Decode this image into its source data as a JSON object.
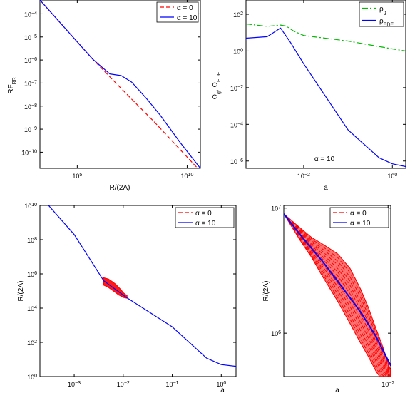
{
  "chart_data": [
    {
      "type": "line",
      "xlabel": "R/(2Λ)",
      "ylabel_main": "RF",
      "ylabel_sub": "RR",
      "xscale": "log",
      "yscale": "log",
      "xlim": [
        2000,
        40000000000
      ],
      "ylim": [
        2e-11,
        0.0004
      ],
      "xticks": [
        {
          "v": 100000,
          "m": "10",
          "e": "5"
        },
        {
          "v": 10000000000,
          "m": "10",
          "e": "10"
        }
      ],
      "yticks": [
        {
          "v": 0.0001,
          "m": "10",
          "e": "−4"
        },
        {
          "v": 1e-05,
          "m": "10",
          "e": "−5"
        },
        {
          "v": 1e-06,
          "m": "10",
          "e": "−6"
        },
        {
          "v": 1e-07,
          "m": "10",
          "e": "−7"
        },
        {
          "v": 1e-08,
          "m": "10",
          "e": "−8"
        },
        {
          "v": 1e-09,
          "m": "10",
          "e": "−9"
        },
        {
          "v": 1e-10,
          "m": "10",
          "e": "−10"
        }
      ],
      "legend": "top-right",
      "series": [
        {
          "name": "α = 0",
          "color": "#ff0000",
          "style": "dashed",
          "x": [
            2000,
            500000,
            5000000,
            30000000,
            300000000,
            40000000000
          ],
          "y": [
            0.0004,
            1.1e-06,
            1.15e-07,
            2e-08,
            2.2e-09,
            1.5e-11
          ]
        },
        {
          "name": "α = 10",
          "color": "#0000ff",
          "style": "solid",
          "x": [
            2000,
            500000,
            3000000,
            10000000,
            30000000,
            150000000,
            600000000,
            5000000000,
            40000000000
          ],
          "y": [
            0.0004,
            1.1e-06,
            2.5e-07,
            2.1e-07,
            1.1e-07,
            2e-08,
            4e-09,
            2.5e-10,
            2e-11
          ]
        }
      ]
    },
    {
      "type": "line",
      "xlabel": "a",
      "ylabel_main": "Ω",
      "ylabel_s1": "g",
      "ylabel_mid": ", Ω",
      "ylabel_s2": "EDE",
      "xscale": "log",
      "yscale": "log",
      "xlim": [
        0.0005,
        2
      ],
      "ylim": [
        4e-07,
        600
      ],
      "annotation": "α = 10",
      "xticks": [
        {
          "v": 0.01,
          "m": "10",
          "e": "−2"
        },
        {
          "v": 1,
          "m": "10",
          "e": "0"
        }
      ],
      "yticks": [
        {
          "v": 100,
          "m": "10",
          "e": "2"
        },
        {
          "v": 1,
          "m": "10",
          "e": "0"
        },
        {
          "v": 0.01,
          "m": "10",
          "e": "−2"
        },
        {
          "v": 0.0001,
          "m": "10",
          "e": "−4"
        },
        {
          "v": 1e-06,
          "m": "10",
          "e": "−6"
        }
      ],
      "legend": "top-right",
      "series": [
        {
          "name_main": "ρ",
          "name_sub": "g",
          "color": "#00bb00",
          "style": "dashdot",
          "x": [
            0.0005,
            0.0015,
            0.003,
            0.004,
            0.006,
            0.01,
            0.1,
            1,
            2
          ],
          "y": [
            30,
            22,
            26,
            23,
            12,
            7,
            3.5,
            1.3,
            1
          ]
        },
        {
          "name_main": "ρ",
          "name_sub": "EDE",
          "color": "#0000ff",
          "style": "solid",
          "x": [
            0.0005,
            0.0015,
            0.003,
            0.005,
            0.01,
            0.1,
            0.5,
            1,
            2
          ],
          "y": [
            5,
            6,
            18,
            3,
            0.2,
            5e-05,
            1.5e-06,
            7e-07,
            5e-07
          ]
        }
      ]
    },
    {
      "type": "line",
      "xlabel": "a",
      "ylabel": "R/(2Λ)",
      "xscale": "log",
      "yscale": "log",
      "xlim": [
        0.0002,
        2
      ],
      "ylim": [
        1,
        10000000000
      ],
      "xticks": [
        {
          "v": 0.001,
          "m": "10",
          "e": "−3"
        },
        {
          "v": 0.01,
          "m": "10",
          "e": "−2"
        },
        {
          "v": 0.1,
          "m": "10",
          "e": "−1"
        },
        {
          "v": 1,
          "m": "10",
          "e": "0"
        }
      ],
      "yticks": [
        {
          "v": 1,
          "m": "10",
          "e": "0"
        },
        {
          "v": 100,
          "m": "10",
          "e": "2"
        },
        {
          "v": 10000,
          "m": "10",
          "e": "4"
        },
        {
          "v": 1000000,
          "m": "10",
          "e": "6"
        },
        {
          "v": 100000000,
          "m": "10",
          "e": "8"
        },
        {
          "v": 10000000000,
          "m": "10",
          "e": "10"
        }
      ],
      "legend": "top-right",
      "series": [
        {
          "name": "α = 0",
          "color": "#ff0000",
          "style": "dashed",
          "band": {
            "x": [
              0.004,
              0.005,
              0.006,
              0.007,
              0.008,
              0.009,
              0.01,
              0.011,
              0.012
            ],
            "upper": [
              600000,
              500000,
              350000,
              250000,
              170000,
              120000,
              80000,
              65000,
              55000
            ],
            "lower": [
              220000,
              160000,
              110000,
              80000,
              60000,
              50000,
              42000,
              40000,
              38000
            ]
          }
        },
        {
          "name": "α = 10",
          "color": "#0000ff",
          "style": "solid",
          "x": [
            0.0003,
            0.001,
            0.004,
            0.012,
            0.1,
            0.5,
            1,
            2
          ],
          "y": [
            10000000000,
            200000000,
            400000,
            40000,
            800,
            12,
            5,
            4
          ]
        }
      ]
    },
    {
      "type": "line",
      "xlabel": "a",
      "ylabel": "R/(2Λ)",
      "xscale": "log",
      "yscale": "log",
      "xlim": [
        0.0015,
        0.0105
      ],
      "ylim": [
        450000,
        10500000
      ],
      "xticks": [
        {
          "v": 0.01,
          "m": "10",
          "e": "−2"
        }
      ],
      "yticks": [
        {
          "v": 10000000,
          "m": "10",
          "e": "7"
        },
        {
          "v": 1000000,
          "m": "10",
          "e": "6"
        }
      ],
      "legend": "top-right",
      "series": [
        {
          "name": "α = 0",
          "color": "#ff0000",
          "style": "dashed",
          "band": {
            "x": [
              0.0015,
              0.002,
              0.0025,
              0.003,
              0.004,
              0.005,
              0.006,
              0.007,
              0.008,
              0.009,
              0.0105
            ],
            "upper": [
              9000000,
              7000000,
              5800000,
              5200000,
              4300000,
              3300000,
              2300000,
              1600000,
              1100000,
              800000,
              500000
            ],
            "lower": [
              9000000,
              5600000,
              4000000,
              2900000,
              1800000,
              1200000,
              850000,
              650000,
              500000,
              420000,
              400000
            ]
          }
        },
        {
          "name": "α = 10",
          "color": "#0000ff",
          "style": "solid",
          "x": [
            0.0015,
            0.002,
            0.003,
            0.004,
            0.006,
            0.008,
            0.0105
          ],
          "y": [
            9000000,
            6200000,
            3800000,
            2600000,
            1500000,
            950000,
            550000
          ]
        }
      ]
    }
  ]
}
